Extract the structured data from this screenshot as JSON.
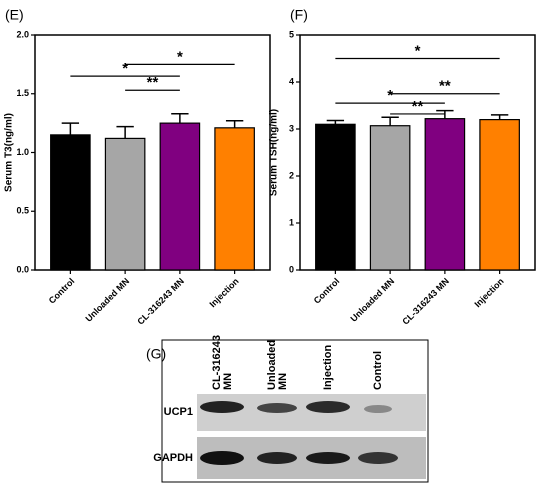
{
  "chart_data": [
    {
      "type": "bar",
      "panel": "(E)",
      "ylabel": "Serum T3(ng/ml)",
      "categories": [
        "Control",
        "Unloaded MN",
        "CL-316243 MN",
        "Injection"
      ],
      "values": [
        1.15,
        1.12,
        1.25,
        1.21
      ],
      "errors": [
        0.1,
        0.1,
        0.08,
        0.06
      ],
      "colors": [
        "#000000",
        "#a6a6a6",
        "#800080",
        "#ff8000"
      ],
      "ylim": [
        0,
        2
      ],
      "yticks": [
        {
          "value": 0,
          "label": "0.0"
        },
        {
          "value": 0.5,
          "label": "0.5"
        },
        {
          "value": 1,
          "label": "1.0"
        },
        {
          "value": 1.5,
          "label": "1.5"
        },
        {
          "value": 2,
          "label": "2.0"
        }
      ],
      "annotations": [
        "*",
        "*",
        "**"
      ]
    },
    {
      "type": "bar",
      "panel": "(F)",
      "ylabel": "Serum TSH(ng/ml)",
      "categories": [
        "Control",
        "Unloaded MN",
        "CL-316243 MN",
        "Injection"
      ],
      "values": [
        3.1,
        3.07,
        3.22,
        3.2
      ],
      "errors": [
        0.08,
        0.18,
        0.17,
        0.1
      ],
      "colors": [
        "#000000",
        "#a6a6a6",
        "#800080",
        "#ff8000"
      ],
      "ylim": [
        0,
        5
      ],
      "yticks": [
        0,
        1,
        2,
        3,
        4,
        5
      ],
      "annotations": [
        "*",
        "**",
        "*",
        "**"
      ]
    }
  ],
  "blot": {
    "panel": "(G)",
    "lanes": [
      "CL-316243 MN",
      "Unloaded MN",
      "Injection",
      "Control"
    ],
    "rows": [
      "UCP1",
      "GAPDH"
    ]
  }
}
